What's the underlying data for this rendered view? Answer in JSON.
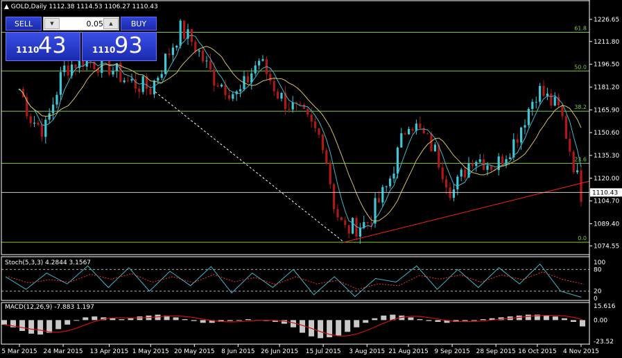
{
  "header": {
    "arrow": "▲",
    "symbol_tf": "GOLD,Daily",
    "ohlc": "1112.38 1114.53 1106.27 1110.43"
  },
  "trade_panel": {
    "sell_label": "SELL",
    "buy_label": "BUY",
    "lot_value": "0.05",
    "bid_prefix": "1110",
    "bid_suffix": "43",
    "ask_prefix": "1110",
    "ask_suffix": "93"
  },
  "colors": {
    "background": "#000000",
    "grid": "#ffffff",
    "fib": "#7fcc3f",
    "trendline": "#ff2020",
    "dashed_line": "#ffffff",
    "ma_fast": "#3fb7cc",
    "ma_slow": "#d6c26a",
    "bull_candle": "#3fc7d7",
    "bear_candle": "#b01818",
    "stoch_signal": "#ff3030",
    "macd_hist": "#c8c8c8",
    "macd_signal": "#d01010"
  },
  "chart_data": [
    {
      "type": "candlestick",
      "title": "GOLD,Daily",
      "ylim": [
        1071,
        1235
      ],
      "y_ticks": [
        "1226.65",
        "1211.80",
        "1196.50",
        "1181.20",
        "1165.90",
        "1150.60",
        "1135.30",
        "1120.00",
        "1104.70",
        "1089.40",
        "1074.55"
      ],
      "current_price": "1110.43",
      "x_ticks": [
        "5 Mar 2015",
        "24 Mar 2015",
        "13 Apr 2015",
        "1 May 2015",
        "20 May 2015",
        "8 Jun 2015",
        "26 Jun 2015",
        "15 Jul 2015",
        "3 Aug 2015",
        "21 Aug 2015",
        "9 Sep 2015",
        "28 Sep 2015",
        "16 Oct 2015",
        "4 Nov 2015"
      ],
      "fibonacci": [
        {
          "level": "0.0",
          "price": 1077
        },
        {
          "level": "23.6",
          "price": 1130
        },
        {
          "level": "38.2",
          "price": 1165
        },
        {
          "level": "50.0",
          "price": 1192
        },
        {
          "level": "61.8",
          "price": 1218
        }
      ],
      "close_path": [
        {
          "x": "5 Mar 2015",
          "y": 1180
        },
        {
          "x": "10 Mar 2015",
          "y": 1160
        },
        {
          "x": "16 Mar 2015",
          "y": 1152
        },
        {
          "x": "24 Mar 2015",
          "y": 1193
        },
        {
          "x": "1 Apr 2015",
          "y": 1200
        },
        {
          "x": "13 Apr 2015",
          "y": 1195
        },
        {
          "x": "21 Apr 2015",
          "y": 1185
        },
        {
          "x": "1 May 2015",
          "y": 1180
        },
        {
          "x": "14 May 2015",
          "y": 1220
        },
        {
          "x": "20 May 2015",
          "y": 1210
        },
        {
          "x": "28 May 2015",
          "y": 1188
        },
        {
          "x": "8 Jun 2015",
          "y": 1175
        },
        {
          "x": "17 Jun 2015",
          "y": 1200
        },
        {
          "x": "26 Jun 2015",
          "y": 1175
        },
        {
          "x": "7 Jul 2015",
          "y": 1160
        },
        {
          "x": "15 Jul 2015",
          "y": 1145
        },
        {
          "x": "20 Jul 2015",
          "y": 1100
        },
        {
          "x": "24 Jul 2015",
          "y": 1085
        },
        {
          "x": "3 Aug 2015",
          "y": 1090
        },
        {
          "x": "12 Aug 2015",
          "y": 1115
        },
        {
          "x": "21 Aug 2015",
          "y": 1160
        },
        {
          "x": "1 Sep 2015",
          "y": 1140
        },
        {
          "x": "9 Sep 2015",
          "y": 1110
        },
        {
          "x": "18 Sep 2015",
          "y": 1135
        },
        {
          "x": "28 Sep 2015",
          "y": 1128
        },
        {
          "x": "6 Oct 2015",
          "y": 1145
        },
        {
          "x": "16 Oct 2015",
          "y": 1180
        },
        {
          "x": "26 Oct 2015",
          "y": 1165
        },
        {
          "x": "4 Nov 2015",
          "y": 1110
        }
      ]
    },
    {
      "type": "line",
      "title": "Stoch(5,3,3) 4.2844 3.1567",
      "ylim": [
        0,
        100
      ],
      "y_ticks": [
        "100",
        "80",
        "20",
        "0"
      ],
      "levels": [
        80,
        20
      ],
      "series": [
        {
          "name": "Stoch(5,3,3)",
          "values": [
            60,
            25,
            70,
            40,
            90,
            30,
            85,
            20,
            75,
            35,
            88,
            15,
            70,
            30,
            80,
            10,
            60,
            5,
            55,
            45,
            90,
            25,
            80,
            30,
            85,
            40,
            95,
            20,
            3
          ]
        }
      ]
    },
    {
      "type": "bar",
      "title": "MACD(12,26,9) -7.883 1.197",
      "ylim": [
        -23.52,
        15.616
      ],
      "y_ticks": [
        "15.616",
        "0.00",
        "-23.52"
      ],
      "values": [
        -5,
        -8,
        -12,
        -15,
        -16,
        -14,
        -10,
        -5,
        0,
        3,
        4,
        3,
        2,
        1,
        2,
        4,
        5,
        6,
        5,
        3,
        1,
        -1,
        -3,
        -3,
        -2,
        -1,
        0,
        1,
        0,
        -1,
        -2,
        -4,
        -8,
        -14,
        -18,
        -20,
        -19,
        -17,
        -13,
        -8,
        -3,
        2,
        5,
        6,
        5,
        3,
        1,
        -1,
        -2,
        -3,
        -2,
        -1,
        0,
        1,
        2,
        3,
        4,
        5,
        6,
        6,
        5,
        4,
        2,
        -2,
        -7
      ]
    }
  ]
}
